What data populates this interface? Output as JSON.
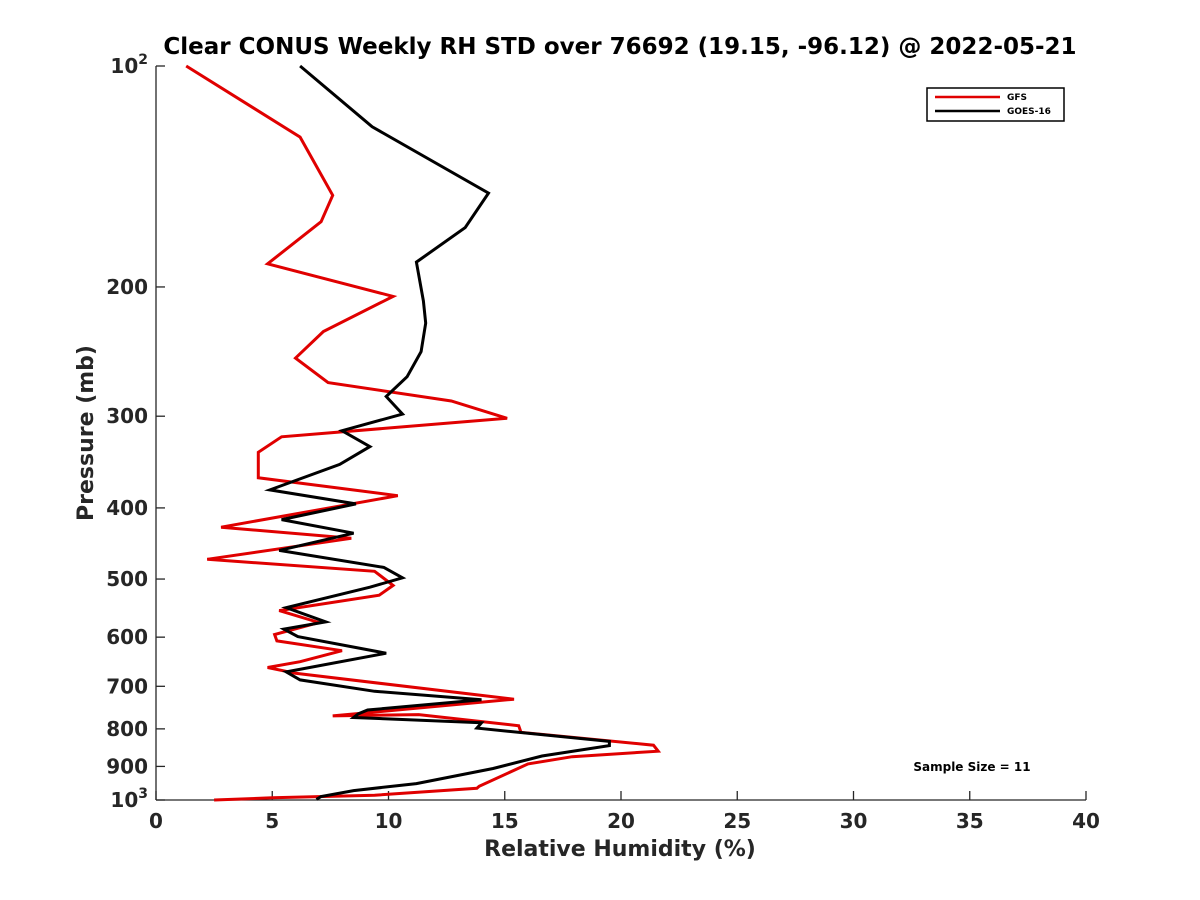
{
  "chart_data": {
    "type": "line",
    "title": "Clear CONUS Weekly RH STD over 76692 (19.15, -96.12) @ 2022-05-21",
    "xlabel": "Relative Humidity (%)",
    "ylabel": "Pressure (mb)",
    "xlim": [
      0,
      40
    ],
    "ylim": [
      100,
      1000
    ],
    "y_scale": "log",
    "y_direction": "reversed",
    "x_ticks": [
      "0",
      "5",
      "10",
      "15",
      "20",
      "25",
      "30",
      "35",
      "40"
    ],
    "y_ticks": [
      {
        "value": 100,
        "base": "10",
        "exp": "2"
      },
      {
        "value": 200,
        "label": "200"
      },
      {
        "value": 300,
        "label": "300"
      },
      {
        "value": 400,
        "label": "400"
      },
      {
        "value": 500,
        "label": "500"
      },
      {
        "value": 600,
        "label": "600"
      },
      {
        "value": 700,
        "label": "700"
      },
      {
        "value": 800,
        "label": "800"
      },
      {
        "value": 900,
        "label": "900"
      },
      {
        "value": 1000,
        "base": "10",
        "exp": "3"
      }
    ],
    "legend_position": "top-right",
    "annotation": "Sample Size = 11",
    "series": [
      {
        "name": "GFS",
        "color": "#e00000",
        "points": [
          [
            1.3,
            100
          ],
          [
            6.2,
            125
          ],
          [
            7.6,
            150
          ],
          [
            7.1,
            163
          ],
          [
            4.8,
            186
          ],
          [
            10.2,
            206
          ],
          [
            7.2,
            230
          ],
          [
            6.0,
            250
          ],
          [
            7.4,
            270
          ],
          [
            12.7,
            286
          ],
          [
            15.1,
            302
          ],
          [
            5.4,
            320
          ],
          [
            4.4,
            336
          ],
          [
            4.4,
            364
          ],
          [
            10.4,
            385
          ],
          [
            2.8,
            425
          ],
          [
            8.4,
            440
          ],
          [
            2.2,
            470
          ],
          [
            9.4,
            488
          ],
          [
            10.2,
            510
          ],
          [
            9.6,
            526
          ],
          [
            5.3,
            552
          ],
          [
            7.0,
            573
          ],
          [
            5.1,
            595
          ],
          [
            5.2,
            607
          ],
          [
            8.0,
            626
          ],
          [
            6.2,
            648
          ],
          [
            4.8,
            660
          ],
          [
            6.0,
            672
          ],
          [
            15.4,
            729
          ],
          [
            7.6,
            768
          ],
          [
            11.3,
            765
          ],
          [
            15.6,
            792
          ],
          [
            15.7,
            809
          ],
          [
            21.4,
            842
          ],
          [
            21.6,
            858
          ],
          [
            17.9,
            873
          ],
          [
            16.0,
            893
          ],
          [
            13.9,
            958
          ],
          [
            13.8,
            964
          ],
          [
            9.4,
            985
          ],
          [
            5.0,
            993
          ],
          [
            2.5,
            1000
          ]
        ]
      },
      {
        "name": "GOES-16",
        "color": "#000000",
        "points": [
          [
            6.2,
            100
          ],
          [
            9.3,
            121
          ],
          [
            14.3,
            149
          ],
          [
            13.3,
            166
          ],
          [
            11.2,
            185
          ],
          [
            11.5,
            209
          ],
          [
            11.6,
            224
          ],
          [
            11.4,
            245
          ],
          [
            10.8,
            265
          ],
          [
            9.9,
            282
          ],
          [
            10.6,
            298
          ],
          [
            8.0,
            314
          ],
          [
            9.2,
            330
          ],
          [
            7.9,
            349
          ],
          [
            4.9,
            378
          ],
          [
            8.6,
            395
          ],
          [
            5.4,
            415
          ],
          [
            8.5,
            433
          ],
          [
            5.3,
            457
          ],
          [
            9.8,
            482
          ],
          [
            10.6,
            498
          ],
          [
            9.2,
            513
          ],
          [
            5.6,
            547
          ],
          [
            7.3,
            572
          ],
          [
            5.5,
            585
          ],
          [
            6.1,
            599
          ],
          [
            9.9,
            631
          ],
          [
            5.6,
            669
          ],
          [
            6.2,
            686
          ],
          [
            9.4,
            711
          ],
          [
            14.0,
            730
          ],
          [
            9.1,
            754
          ],
          [
            8.7,
            763
          ],
          [
            8.5,
            772
          ],
          [
            14.0,
            785
          ],
          [
            13.8,
            798
          ],
          [
            19.5,
            832
          ],
          [
            19.5,
            843
          ],
          [
            16.6,
            871
          ],
          [
            14.5,
            906
          ],
          [
            11.2,
            950
          ],
          [
            8.5,
            971
          ],
          [
            7.1,
            989
          ],
          [
            6.9,
            998
          ]
        ]
      }
    ]
  }
}
